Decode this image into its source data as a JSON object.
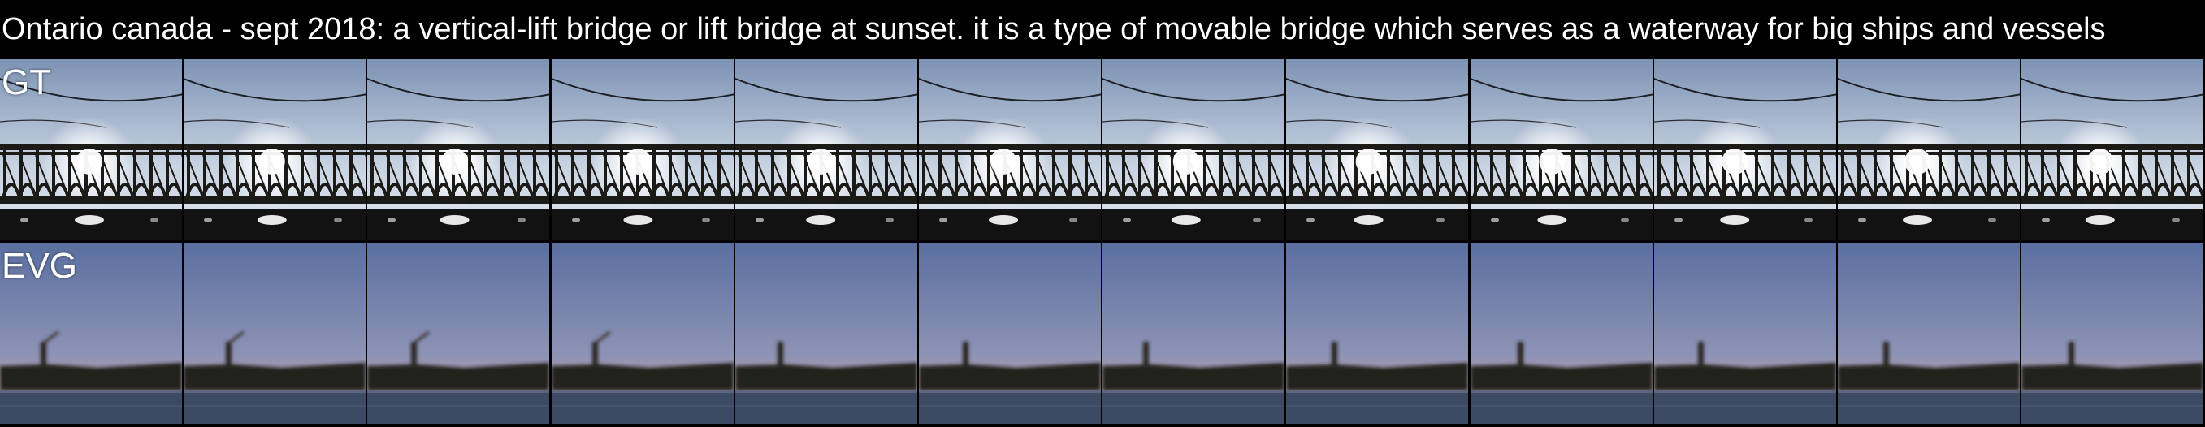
{
  "caption": "Ontario canada - sept 2018: a vertical-lift bridge or lift bridge at sunset. it is a type of movable bridge which serves as a waterway for big ships and vessels",
  "rows": [
    {
      "label": "GT",
      "frames": 12,
      "scene": "bridge-backlit-sun"
    },
    {
      "label": "EVG",
      "frames": 12,
      "scene": "dusk-shoreline-tower"
    }
  ],
  "colors": {
    "background": "#000000",
    "gt_sky_top": "#7d93b4",
    "gt_sky_bottom": "#c9d4e2",
    "gt_bridge": "#1b1a17",
    "gt_sun": "#ffffff",
    "evg_sky_top": "#5a6fa0",
    "evg_sky_bottom": "#c9a0a0",
    "evg_shore": "#24201c",
    "evg_water": "#3d4a63"
  }
}
